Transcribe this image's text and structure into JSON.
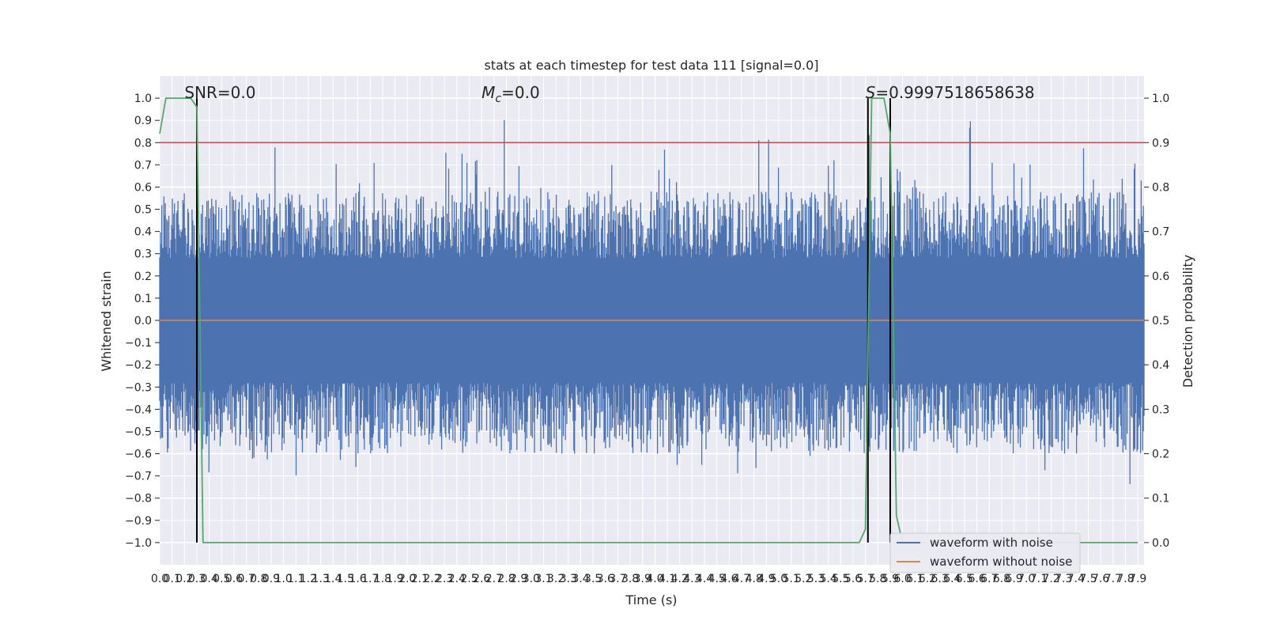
{
  "chart_data": {
    "type": "line",
    "title": "stats at each timestep for test data 111 [signal=0.0]",
    "xlabel": "Time (s)",
    "ylabel": "Whitened strain",
    "ylabel_right": "Detection probability",
    "xlim": [
      0.0,
      7.95
    ],
    "ylim": [
      -1.1,
      1.1
    ],
    "ylim_right": [
      -0.05,
      1.05
    ],
    "grid": true,
    "x_ticks": [
      "0.0",
      "0.1",
      "0.2",
      "0.3",
      "0.4",
      "0.5",
      "0.6",
      "0.7",
      "0.8",
      "0.9",
      "1.0",
      "1.1",
      "1.2",
      "1.3",
      "1.4",
      "1.5",
      "1.6",
      "1.7",
      "1.8",
      "1.9",
      "2.0",
      "2.1",
      "2.2",
      "2.3",
      "2.4",
      "2.5",
      "2.6",
      "2.7",
      "2.8",
      "2.9",
      "3.0",
      "3.1",
      "3.2",
      "3.3",
      "3.4",
      "3.5",
      "3.6",
      "3.7",
      "3.8",
      "3.9",
      "4.0",
      "4.1",
      "4.2",
      "4.3",
      "4.4",
      "4.5",
      "4.6",
      "4.7",
      "4.8",
      "4.9",
      "5.0",
      "5.1",
      "5.2",
      "5.3",
      "5.4",
      "5.5",
      "5.6",
      "5.7",
      "5.8",
      "5.9",
      "6.0",
      "6.1",
      "6.2",
      "6.3",
      "6.4",
      "6.5",
      "6.6",
      "6.7",
      "6.8",
      "6.9",
      "7.0",
      "7.1",
      "7.2",
      "7.3",
      "7.4",
      "7.5",
      "7.6",
      "7.7",
      "7.8",
      "7.9"
    ],
    "y_ticks": [
      "1.0",
      "0.9",
      "0.8",
      "0.7",
      "0.6",
      "0.5",
      "0.4",
      "0.3",
      "0.2",
      "0.1",
      "0.0",
      "−0.1",
      "−0.2",
      "−0.3",
      "−0.4",
      "−0.5",
      "−0.6",
      "−0.7",
      "−0.8",
      "−0.9",
      "−1.0"
    ],
    "y_ticks_right": [
      "1.0",
      "0.9",
      "0.8",
      "0.7",
      "0.6",
      "0.5",
      "0.4",
      "0.3",
      "0.2",
      "0.1",
      "0.0"
    ],
    "annotations": [
      {
        "text": "SNR=0.0",
        "x": 0.2
      },
      {
        "mathvar": "M",
        "sub": "c",
        "text": "=0.0",
        "x": 2.6
      },
      {
        "mathvar": "S",
        "text": "=0.9997518658638",
        "x": 5.7
      }
    ],
    "series": [
      {
        "name": "waveform with noise",
        "color": "#4c72b0",
        "kind": "noise",
        "axis": "left",
        "abs_peak": 1.0
      },
      {
        "name": "waveform without noise",
        "color": "#dd8452",
        "axis": "left",
        "values_constant": 0.0
      },
      {
        "name": "",
        "color": "#55a868",
        "axis": "right",
        "x": [
          0.0,
          0.05,
          0.1,
          0.15,
          0.2,
          0.25,
          0.3,
          0.35,
          0.4,
          5.65,
          5.7,
          5.75,
          5.8,
          5.85,
          5.9,
          5.95,
          6.0,
          7.9
        ],
        "values": [
          0.92,
          1.0,
          1.0,
          1.0,
          1.0,
          1.0,
          0.98,
          0.0,
          0.0,
          0.0,
          0.03,
          1.0,
          1.0,
          1.0,
          0.92,
          0.06,
          0.0,
          0.0
        ]
      }
    ],
    "threshold_line": {
      "color": "#c44e52",
      "axis": "right",
      "value": 0.9
    },
    "vertical_lines": [
      {
        "x": 0.3,
        "color": "#000000"
      },
      {
        "x": 5.72,
        "color": "#000000"
      },
      {
        "x": 5.9,
        "color": "#000000"
      }
    ],
    "legend": {
      "position": "lower-right",
      "entries": [
        "waveform with noise",
        "waveform without noise"
      ]
    }
  }
}
